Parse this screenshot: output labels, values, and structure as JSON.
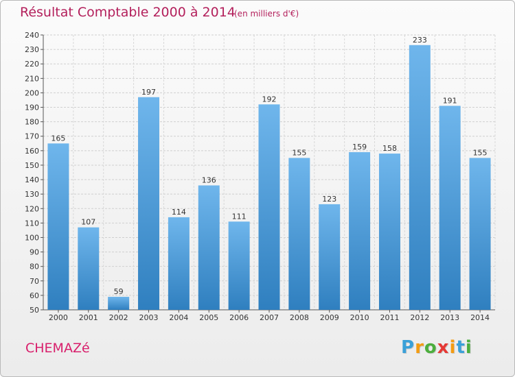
{
  "chart_data": {
    "type": "bar",
    "title": "Résultat Comptable 2000 à 2014",
    "subtitle": "(en milliers d'€)",
    "categories": [
      "2000",
      "2001",
      "2002",
      "2003",
      "2004",
      "2005",
      "2006",
      "2007",
      "2008",
      "2009",
      "2010",
      "2011",
      "2012",
      "2013",
      "2014"
    ],
    "values": [
      165,
      107,
      59,
      197,
      114,
      136,
      111,
      192,
      155,
      123,
      159,
      158,
      233,
      191,
      155
    ],
    "ylim": [
      50,
      240
    ],
    "ytick_step": 10,
    "grid": true,
    "bar_color_light": "#6fb6ec",
    "bar_color_dark": "#2f7fbf"
  },
  "commune": "CHEMAZé",
  "logo": {
    "letters": [
      "P",
      "r",
      "o",
      "x",
      "i",
      "t",
      "i"
    ],
    "colors": [
      "#3aa0d8",
      "#f39c12",
      "#4cae3d",
      "#e53935",
      "#f39c12",
      "#3aa0d8",
      "#4cae3d"
    ]
  }
}
